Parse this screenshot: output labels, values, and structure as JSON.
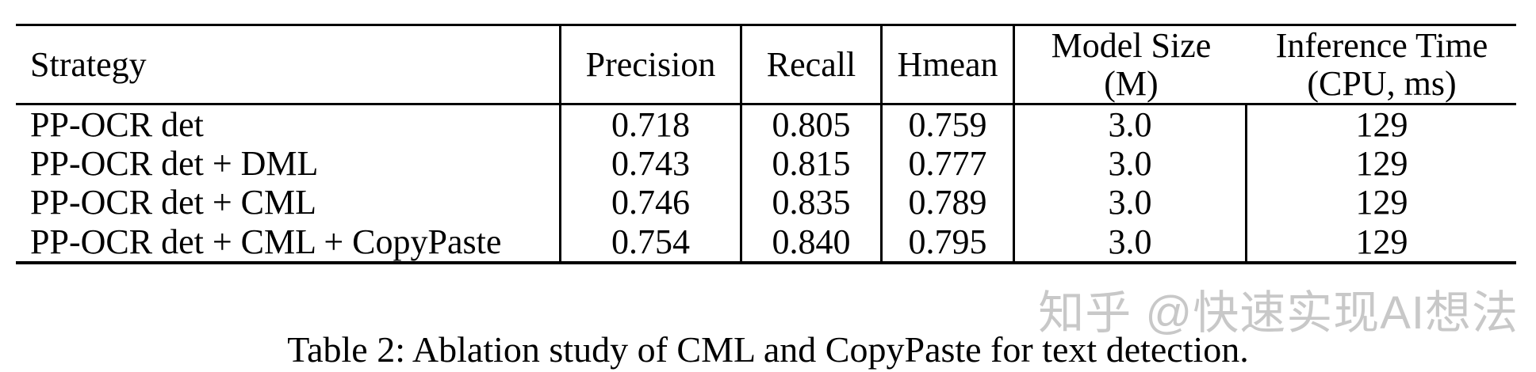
{
  "table": {
    "columns": [
      {
        "label": "Strategy",
        "sub": ""
      },
      {
        "label": "Precision",
        "sub": ""
      },
      {
        "label": "Recall",
        "sub": ""
      },
      {
        "label": "Hmean",
        "sub": ""
      },
      {
        "label": "Model Size",
        "sub": "(M)"
      },
      {
        "label": "Inference Time",
        "sub": "(CPU, ms)"
      }
    ],
    "rows": [
      {
        "strategy": "PP-OCR det",
        "precision": "0.718",
        "recall": "0.805",
        "hmean": "0.759",
        "model_size": "3.0",
        "inference_time": "129"
      },
      {
        "strategy": "PP-OCR det + DML",
        "precision": "0.743",
        "recall": "0.815",
        "hmean": "0.777",
        "model_size": "3.0",
        "inference_time": "129"
      },
      {
        "strategy": "PP-OCR det + CML",
        "precision": "0.746",
        "recall": "0.835",
        "hmean": "0.789",
        "model_size": "3.0",
        "inference_time": "129"
      },
      {
        "strategy": "PP-OCR det + CML + CopyPaste",
        "precision": "0.754",
        "recall": "0.840",
        "hmean": "0.795",
        "model_size": "3.0",
        "inference_time": "129"
      }
    ]
  },
  "caption": "Table 2: Ablation study of CML and CopyPaste for text detection.",
  "watermark": "知乎 @快速实现AI想法",
  "colors": {
    "text": "#000000",
    "rule": "#000000",
    "watermark": "#c8c8c8",
    "background": "#ffffff"
  }
}
